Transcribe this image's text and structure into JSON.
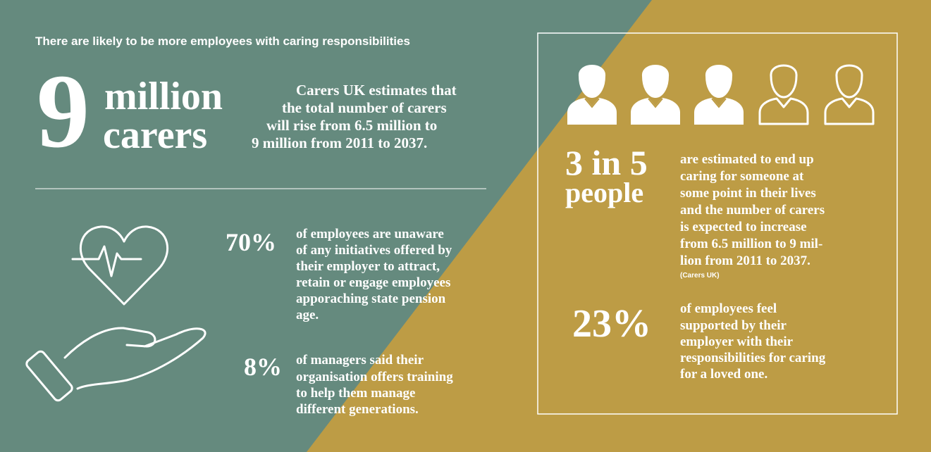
{
  "header": {
    "title": "There are likely to be more employees with caring responsibilities"
  },
  "headline": {
    "number": "9",
    "unit_line1": "million",
    "unit_line2": "carers",
    "text_lines": [
      "Carers UK estimates that",
      "the total number of carers",
      "will rise from 6.5 million to",
      "9 million from 2011 to 2037."
    ]
  },
  "stats": [
    {
      "figure": "70%",
      "text_lines": [
        "of employees are unaware",
        "of any initiatives offered by",
        "their employer to attract,",
        "retain or engage employees",
        "apporaching state pension",
        "age."
      ]
    },
    {
      "figure": "8%",
      "text_lines": [
        "of managers said their",
        "organisation offers training",
        "to help them manage",
        "different generations."
      ]
    }
  ],
  "box": {
    "figure_line1": "3 in 5",
    "figure_line2": "people",
    "text_lines": [
      "are estimated to end up",
      "caring for someone at",
      "some point in their lives",
      "and the number of carers",
      "is expected to increase",
      "from 6.5 million to 9 mil-",
      "lion from 2011 to 2037."
    ],
    "source": "(Carers UK)",
    "stat": {
      "figure": "23%",
      "text_lines": [
        "of employees feel",
        "supported by their",
        "employer with their",
        "responsibilities for caring",
        "for a loved one."
      ]
    }
  }
}
